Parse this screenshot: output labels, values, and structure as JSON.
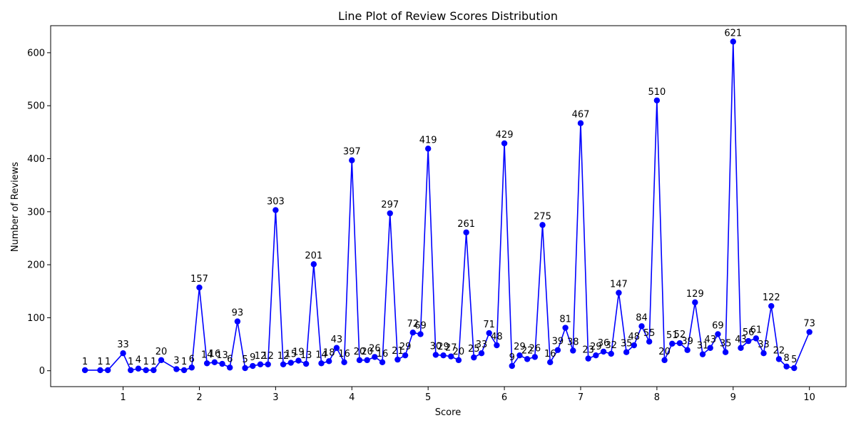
{
  "chart_data": {
    "type": "line",
    "title": "Line Plot of Review Scores Distribution",
    "xlabel": "Score",
    "ylabel": "Number of Reviews",
    "xlim": [
      0.05,
      10.48
    ],
    "ylim": [
      -30,
      651
    ],
    "xticks": [
      1,
      2,
      3,
      4,
      5,
      6,
      7,
      8,
      9,
      10
    ],
    "yticks": [
      0,
      100,
      200,
      300,
      400,
      500,
      600
    ],
    "grid": false,
    "line_color": "#0000ff",
    "marker": "circle",
    "series": [
      {
        "x": [
          0.5,
          0.7,
          0.8,
          1.0,
          1.1,
          1.2,
          1.3,
          1.4,
          1.5,
          1.7,
          1.8,
          1.9,
          2.0,
          2.1,
          2.2,
          2.3,
          2.4,
          2.5,
          2.6,
          2.7,
          2.8,
          2.9,
          3.0,
          3.1,
          3.2,
          3.3,
          3.4,
          3.5,
          3.6,
          3.7,
          3.8,
          3.9,
          4.0,
          4.1,
          4.2,
          4.3,
          4.4,
          4.5,
          4.6,
          4.7,
          4.8,
          4.9,
          5.0,
          5.1,
          5.2,
          5.3,
          5.4,
          5.5,
          5.6,
          5.7,
          5.8,
          5.9,
          6.0,
          6.1,
          6.2,
          6.3,
          6.4,
          6.5,
          6.6,
          6.7,
          6.8,
          6.9,
          7.0,
          7.1,
          7.2,
          7.3,
          7.4,
          7.5,
          7.6,
          7.7,
          7.8,
          7.9,
          8.0,
          8.1,
          8.2,
          8.3,
          8.4,
          8.5,
          8.6,
          8.7,
          8.8,
          8.9,
          9.0,
          9.1,
          9.2,
          9.3,
          9.4,
          9.5,
          9.6,
          9.7,
          9.8,
          10.0
        ],
        "y": [
          1,
          1,
          1,
          33,
          1,
          4,
          1,
          1,
          20,
          3,
          1,
          6,
          157,
          14,
          16,
          13,
          6,
          93,
          5,
          9,
          12,
          12,
          303,
          12,
          15,
          19,
          13,
          201,
          14,
          18,
          43,
          16,
          397,
          20,
          20,
          26,
          16,
          297,
          21,
          29,
          72,
          69,
          419,
          30,
          29,
          27,
          20,
          261,
          25,
          33,
          71,
          48,
          429,
          9,
          29,
          22,
          26,
          275,
          16,
          39,
          81,
          38,
          467,
          23,
          29,
          36,
          32,
          147,
          35,
          48,
          84,
          55,
          510,
          20,
          51,
          52,
          39,
          129,
          31,
          43,
          69,
          35,
          621,
          43,
          56,
          61,
          33,
          122,
          22,
          8,
          5,
          73
        ]
      }
    ]
  }
}
